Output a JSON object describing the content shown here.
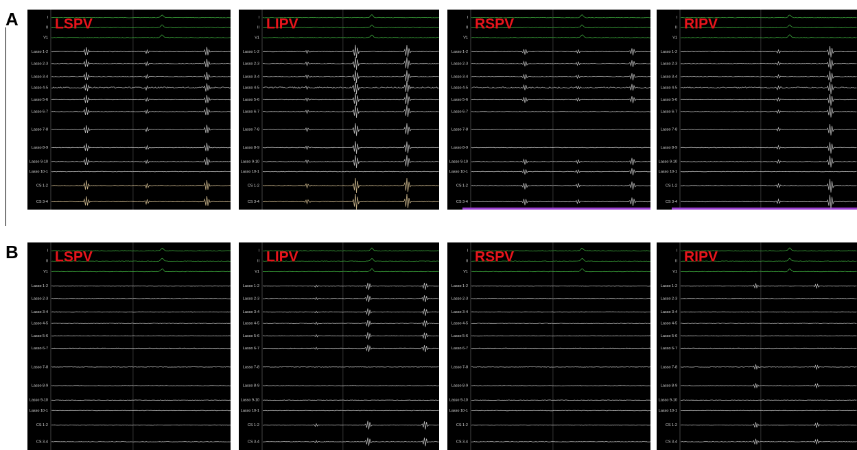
{
  "rows": [
    {
      "label": "A",
      "panels": [
        {
          "label": "LSPV"
        },
        {
          "label": "LIPV"
        },
        {
          "label": "RSPV"
        },
        {
          "label": "RIPV"
        }
      ]
    },
    {
      "label": "B",
      "panels": [
        {
          "label": "LSPV"
        },
        {
          "label": "LIPV"
        },
        {
          "label": "RSPV"
        },
        {
          "label": "RIPV"
        }
      ]
    }
  ],
  "channels": [
    "I",
    "II",
    "V1",
    "Lasso 1-2",
    "Lasso 2-3",
    "Lasso 3-4",
    "Lasso 4-5",
    "Lasso 5-6",
    "Lasso 6-7",
    "Lasso 7-8",
    "Lasso 8-9",
    "Lasso 9-10",
    "Lasso 10-1",
    "CS 1-2",
    "CS 3-4"
  ]
}
